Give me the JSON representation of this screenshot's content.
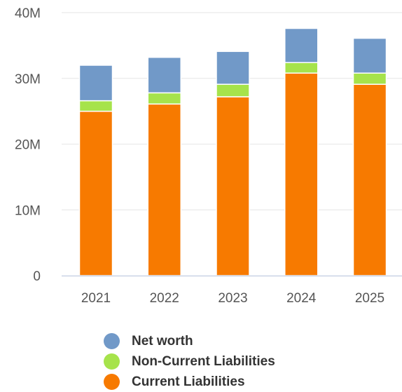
{
  "chart_data": {
    "type": "bar",
    "stacked": true,
    "categories": [
      "2021",
      "2022",
      "2023",
      "2024",
      "2025"
    ],
    "series": [
      {
        "name": "Current Liabilities",
        "color": "#f77a00",
        "values": [
          25.0,
          26.1,
          27.2,
          30.8,
          29.1
        ]
      },
      {
        "name": "Non-Current Liabilities",
        "color": "#a6e34b",
        "values": [
          1.6,
          1.7,
          1.9,
          1.6,
          1.7
        ]
      },
      {
        "name": "Net worth",
        "color": "#7199c8",
        "values": [
          5.4,
          5.4,
          5.0,
          5.2,
          5.3
        ]
      }
    ],
    "ylim": [
      0,
      40
    ],
    "yticks": [
      0,
      10,
      20,
      30,
      40
    ],
    "ytick_labels": [
      "0",
      "10M",
      "20M",
      "30M",
      "40M"
    ],
    "unit": "M",
    "grid": true,
    "legend_position": "bottom"
  },
  "legend": {
    "items": [
      {
        "label": "Net worth",
        "color": "#7199c8"
      },
      {
        "label": "Non-Current Liabilities",
        "color": "#a6e34b"
      },
      {
        "label": "Current Liabilities",
        "color": "#f77a00"
      }
    ]
  },
  "colors": {
    "grid": "#e6e6e6",
    "axis": "#c9d3e6",
    "tick_text": "#555555",
    "legend_text": "#333333"
  }
}
